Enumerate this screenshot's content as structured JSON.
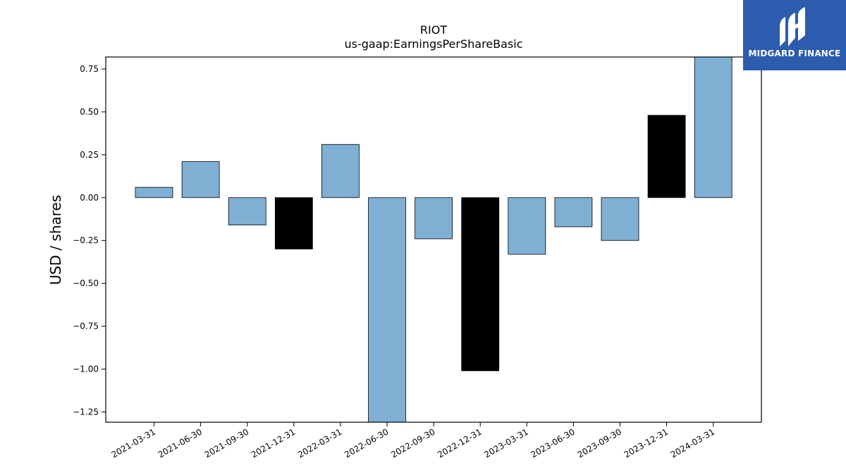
{
  "chart_data": {
    "type": "bar",
    "title": "RIOT",
    "subtitle": "us-gaap:EarningsPerShareBasic",
    "xlabel": "",
    "ylabel": "USD / shares",
    "ylim": [
      -1.31,
      0.82
    ],
    "yticks": [
      0.75,
      0.5,
      0.25,
      0.0,
      -0.25,
      -0.5,
      -0.75,
      -1.0,
      -1.25
    ],
    "ytick_labels": [
      "0.75",
      "0.50",
      "0.25",
      "0.00",
      "−0.25",
      "−0.50",
      "−0.75",
      "−1.00",
      "−1.25"
    ],
    "categories": [
      "2021-03-31",
      "2021-06-30",
      "2021-09-30",
      "2021-12-31",
      "2022-03-31",
      "2022-06-30",
      "2022-09-30",
      "2022-12-31",
      "2023-03-31",
      "2023-06-30",
      "2023-09-30",
      "2023-12-31",
      "2024-03-31"
    ],
    "values": [
      0.06,
      0.21,
      -0.16,
      -0.3,
      0.31,
      -1.31,
      -0.24,
      -1.01,
      -0.33,
      -0.17,
      -0.25,
      0.48,
      0.82
    ],
    "highlight": [
      false,
      false,
      false,
      true,
      false,
      false,
      false,
      true,
      false,
      false,
      false,
      true,
      false
    ],
    "colors": {
      "bar": "#7fb0d4",
      "highlight": "#000000",
      "edge": "#000000"
    },
    "grid": false
  },
  "logo": {
    "text": "MIDGARD FINANCE",
    "color": "#2c5cad"
  }
}
